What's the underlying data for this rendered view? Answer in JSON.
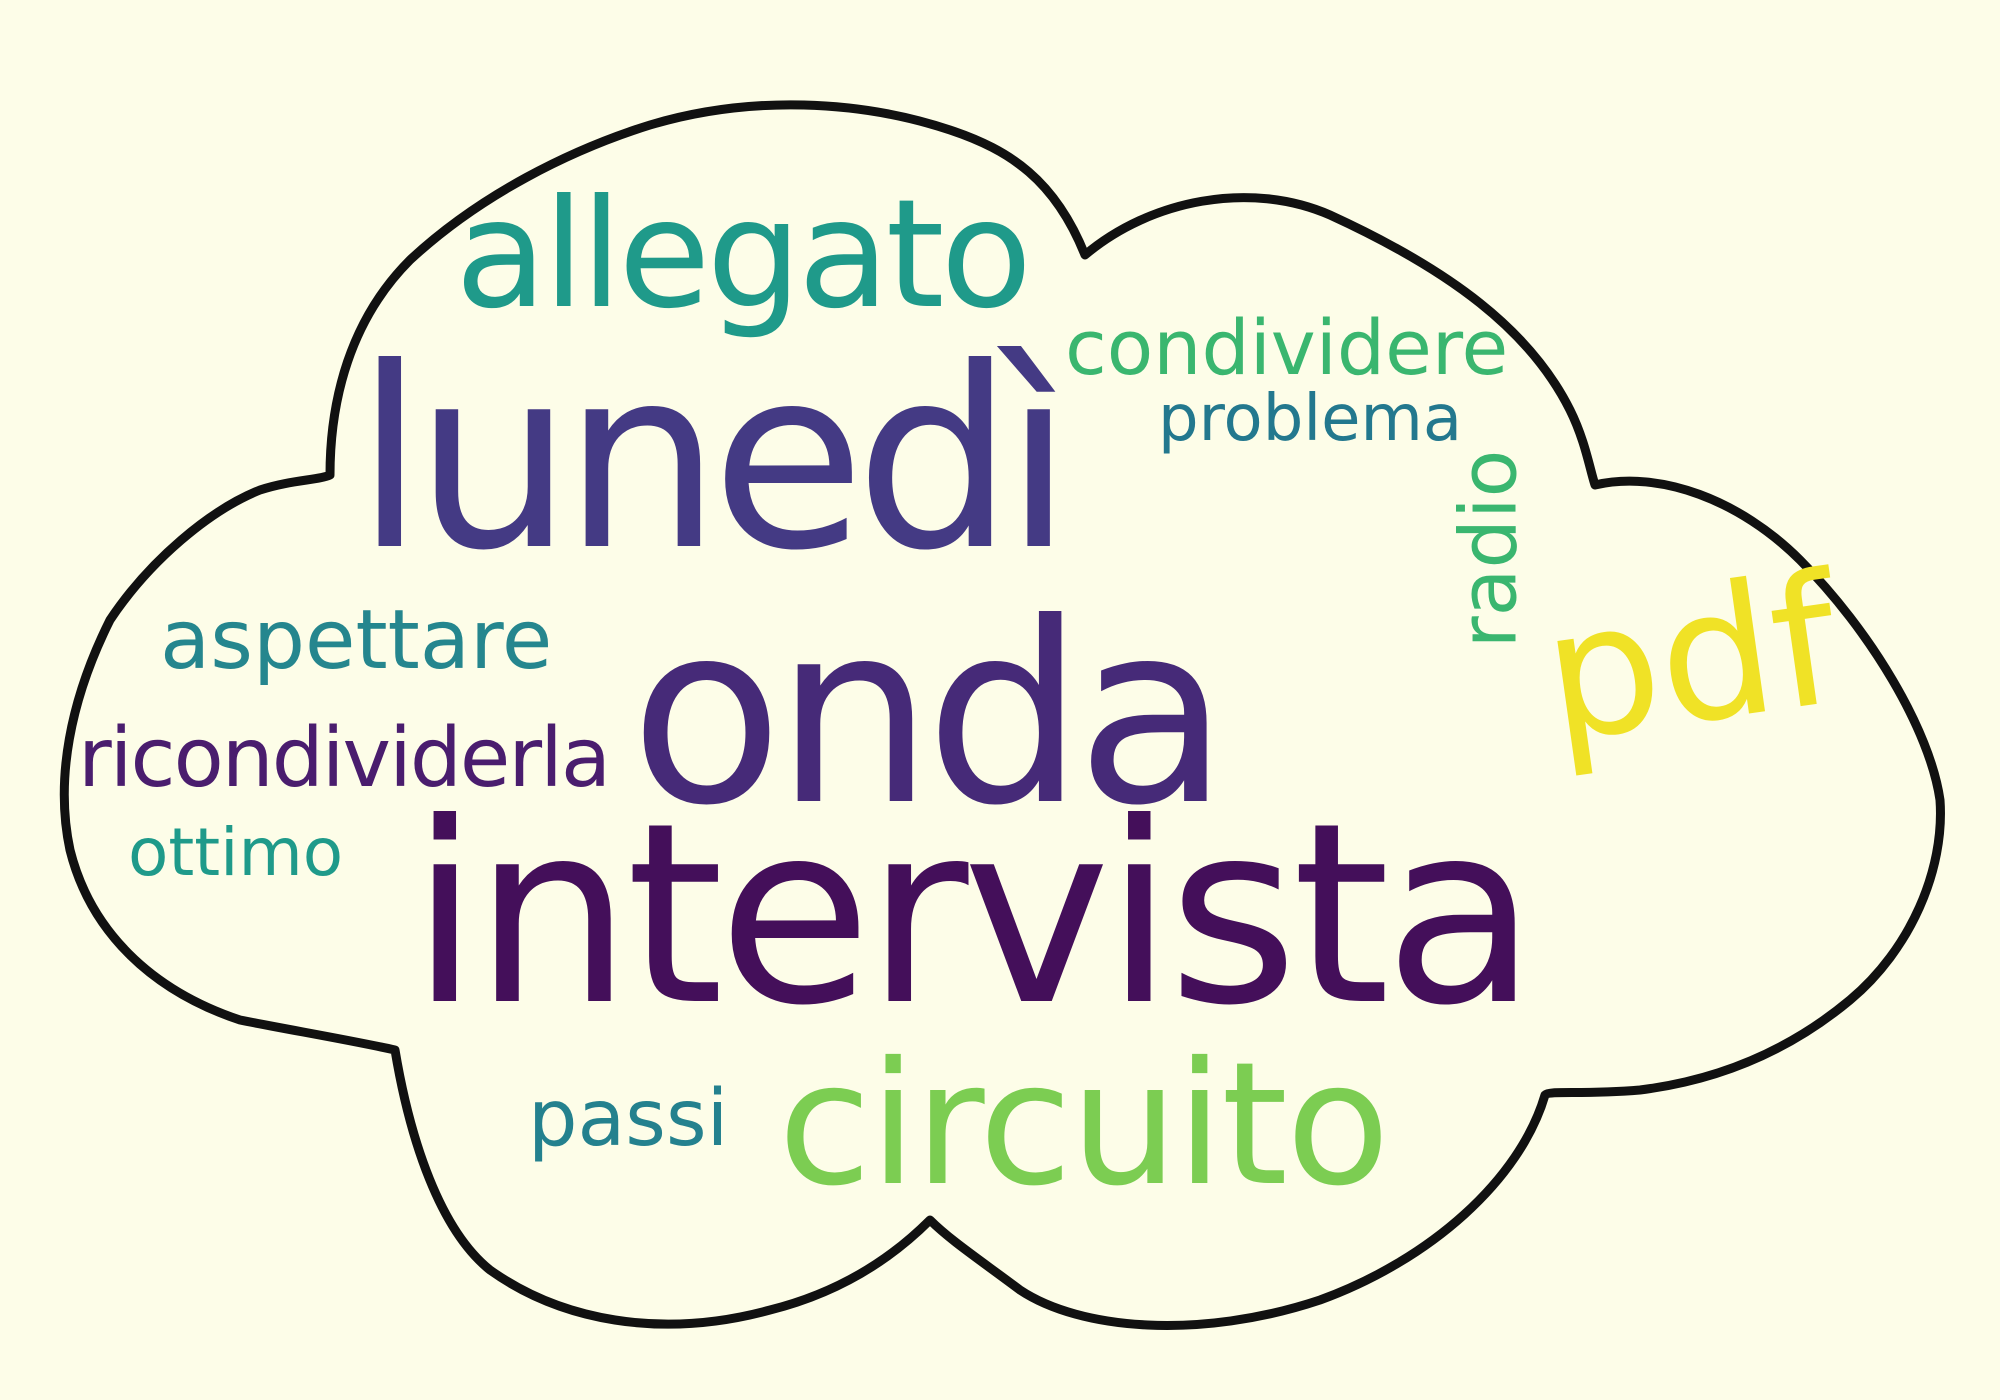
{
  "colors": {
    "background": "#fdfde8",
    "cloud_outline": "#111111"
  },
  "words": [
    {
      "id": "intervista",
      "text": "intervista",
      "color": "#440f5a"
    },
    {
      "id": "onda",
      "text": "onda",
      "color": "#462a78"
    },
    {
      "id": "lunedi",
      "text": "lunedì",
      "color": "#443a84"
    },
    {
      "id": "circuito",
      "text": "circuito",
      "color": "#7ccd52"
    },
    {
      "id": "allegato",
      "text": "allegato",
      "color": "#1f9a8a"
    },
    {
      "id": "pdf",
      "text": "pdf",
      "color": "#f0e226"
    },
    {
      "id": "condividere",
      "text": "condividere",
      "color": "#3ab66f"
    },
    {
      "id": "problema",
      "text": "problema",
      "color": "#23788e"
    },
    {
      "id": "radio",
      "text": "radio",
      "color": "#3ab66f"
    },
    {
      "id": "aspettare",
      "text": "aspettare",
      "color": "#25868e"
    },
    {
      "id": "ricondividerla",
      "text": "ricondividerla",
      "color": "#4a1d6e"
    },
    {
      "id": "ottimo",
      "text": "ottimo",
      "color": "#1f9a8a"
    },
    {
      "id": "passi",
      "text": "passi",
      "color": "#24818e"
    }
  ]
}
